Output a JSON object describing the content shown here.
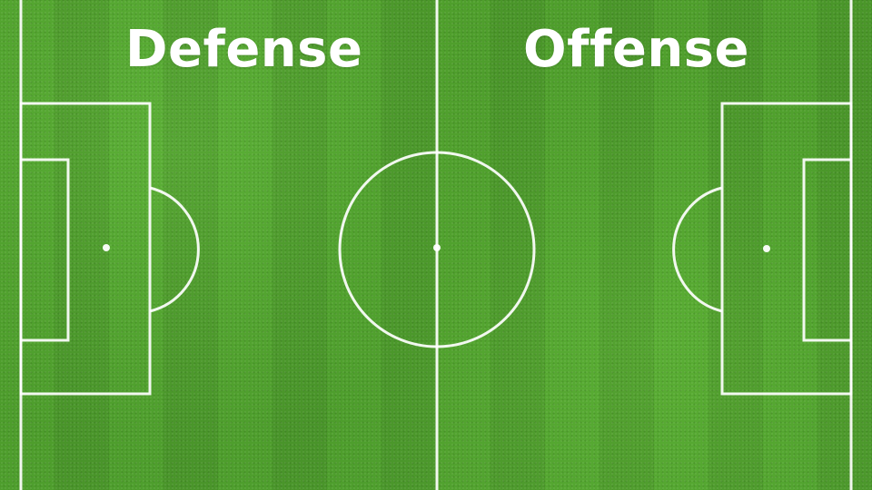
{
  "labels": {
    "left": "Defense",
    "right": "Offense"
  },
  "colors": {
    "grass": "#4a9a2a",
    "lines": "#ffffff",
    "text": "#ffffff"
  }
}
